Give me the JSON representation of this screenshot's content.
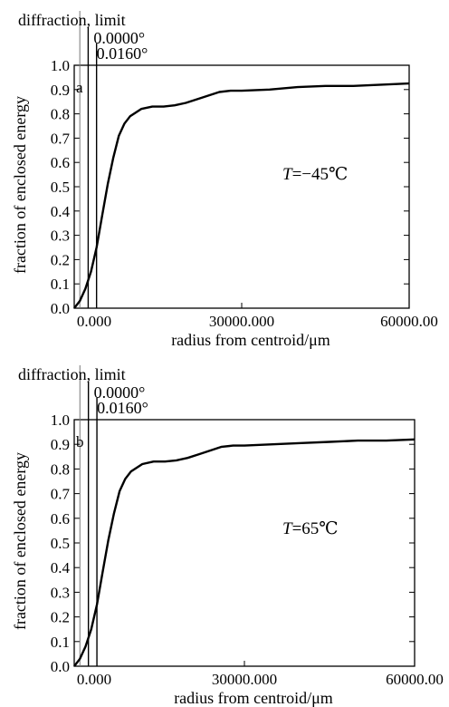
{
  "chart_data": [
    {
      "type": "line",
      "panel_label": "a",
      "annotation": "T=−45℃",
      "annotation_var": "T",
      "annotation_rest": "=−45℃",
      "legend": [
        "diffraction, limit",
        "0.0000°",
        "0.0160°"
      ],
      "xlabel": "radius from centroid/μm",
      "ylabel": "fraction of enclosed energy",
      "xlim": [
        0,
        60000
      ],
      "ylim": [
        0,
        1.0
      ],
      "xticks": [
        "0.000",
        "30000.000",
        "60000.00"
      ],
      "yticks": [
        "0.0",
        "0.1",
        "0.2",
        "0.3",
        "0.4",
        "0.5",
        "0.6",
        "0.7",
        "0.8",
        "0.9",
        "1.0"
      ],
      "vlines": [
        {
          "name": "diffraction, limit",
          "x": 1000
        },
        {
          "name": "0.0000°",
          "x": 2500
        },
        {
          "name": "0.0160°",
          "x": 4000
        }
      ],
      "series": [
        {
          "x": [
            0,
            1000,
            2000,
            3000,
            4000,
            5000,
            6000,
            7000,
            8000,
            9000,
            10000,
            12000,
            14000,
            16000,
            18000,
            20000,
            22000,
            24000,
            26000,
            28000,
            30000,
            35000,
            40000,
            45000,
            50000,
            55000,
            60000
          ],
          "y": [
            0.0,
            0.03,
            0.08,
            0.15,
            0.25,
            0.38,
            0.51,
            0.62,
            0.71,
            0.76,
            0.79,
            0.82,
            0.83,
            0.83,
            0.835,
            0.845,
            0.86,
            0.875,
            0.89,
            0.895,
            0.895,
            0.9,
            0.91,
            0.915,
            0.915,
            0.92,
            0.925
          ]
        }
      ]
    },
    {
      "type": "line",
      "panel_label": "b",
      "annotation": "T=65℃",
      "annotation_var": "T",
      "annotation_rest": "=65℃",
      "legend": [
        "diffraction, limit",
        "0.0000°",
        "0.0160°"
      ],
      "xlabel": "radius from centroid/μm",
      "ylabel": "fraction of enclosed energy",
      "xlim": [
        0,
        60000
      ],
      "ylim": [
        0,
        1.0
      ],
      "xticks": [
        "0.000",
        "30000.000",
        "60000.00"
      ],
      "yticks": [
        "0.0",
        "0.1",
        "0.2",
        "0.3",
        "0.4",
        "0.5",
        "0.6",
        "0.7",
        "0.8",
        "0.9",
        "1.0"
      ],
      "vlines": [
        {
          "name": "diffraction, limit",
          "x": 1000
        },
        {
          "name": "0.0000°",
          "x": 2500
        },
        {
          "name": "0.0160°",
          "x": 4000
        }
      ],
      "series": [
        {
          "x": [
            0,
            1000,
            2000,
            3000,
            4000,
            5000,
            6000,
            7000,
            8000,
            9000,
            10000,
            12000,
            14000,
            16000,
            18000,
            20000,
            22000,
            24000,
            26000,
            28000,
            30000,
            35000,
            40000,
            45000,
            50000,
            55000,
            60000
          ],
          "y": [
            0.0,
            0.03,
            0.08,
            0.15,
            0.25,
            0.38,
            0.51,
            0.62,
            0.71,
            0.76,
            0.79,
            0.82,
            0.83,
            0.83,
            0.835,
            0.845,
            0.86,
            0.875,
            0.89,
            0.895,
            0.895,
            0.9,
            0.905,
            0.91,
            0.915,
            0.915,
            0.92
          ]
        }
      ]
    }
  ]
}
